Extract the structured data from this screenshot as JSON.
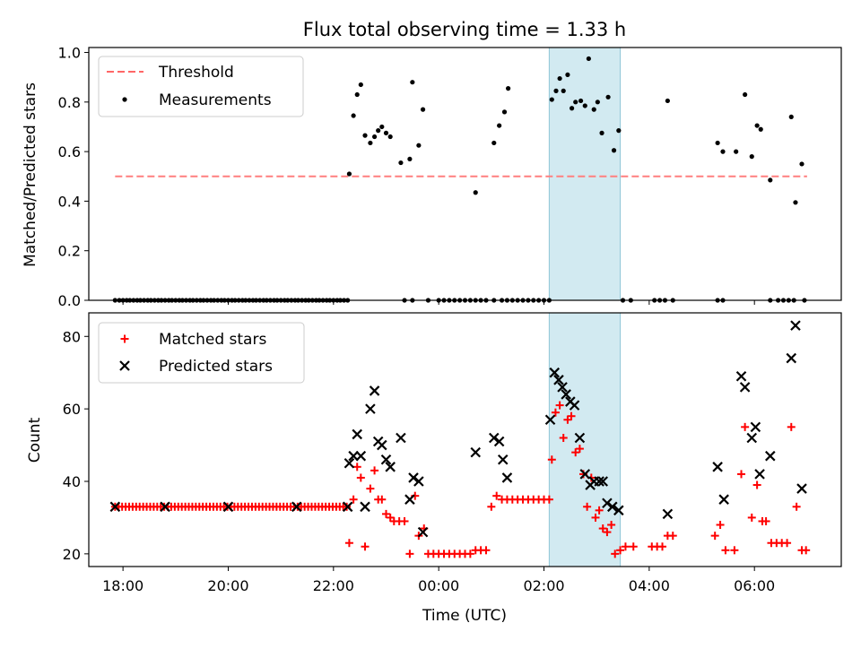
{
  "figure": {
    "title": "Flux total observing time = 1.33 h",
    "xlabel": "Time (UTC)"
  },
  "chart_data": [
    {
      "type": "scatter",
      "panel": "top",
      "ylabel": "Matched/Predicted stars",
      "xlim": [
        17.35,
        31.65
      ],
      "ylim": [
        0,
        1.02
      ],
      "yticks": [
        "0.0",
        "0.2",
        "0.4",
        "0.6",
        "0.8",
        "1.0"
      ],
      "highlight_span": [
        26.1,
        27.45
      ],
      "highlight_color": "#add8e6",
      "legend": [
        {
          "key": "threshold",
          "label": "Threshold",
          "style": "dashed",
          "color": "#ff6666"
        },
        {
          "key": "measurements",
          "label": "Measurements",
          "style": "dot",
          "color": "#000000"
        }
      ],
      "legend_position": "upper-left",
      "threshold": {
        "x": [
          17.85,
          31.0
        ],
        "y": 0.5,
        "color": "#ff7f7f"
      },
      "measurements_zero_x": [
        17.85,
        17.93,
        18.0,
        18.07,
        18.13,
        18.2,
        18.27,
        18.33,
        18.4,
        18.47,
        18.53,
        18.6,
        18.67,
        18.73,
        18.8,
        18.87,
        18.93,
        19.0,
        19.07,
        19.13,
        19.2,
        19.27,
        19.33,
        19.4,
        19.47,
        19.53,
        19.6,
        19.67,
        19.73,
        19.8,
        19.87,
        19.93,
        20.0,
        20.07,
        20.13,
        20.2,
        20.27,
        20.33,
        20.4,
        20.47,
        20.53,
        20.6,
        20.67,
        20.73,
        20.8,
        20.87,
        20.93,
        21.0,
        21.07,
        21.13,
        21.2,
        21.27,
        21.33,
        21.4,
        21.47,
        21.53,
        21.6,
        21.67,
        21.73,
        21.8,
        21.87,
        21.93,
        22.0,
        22.07,
        22.13,
        22.2,
        22.27,
        23.35,
        23.5,
        23.8,
        24.0,
        24.1,
        24.2,
        24.3,
        24.4,
        24.5,
        24.6,
        24.7,
        24.8,
        24.9,
        25.05,
        25.2,
        25.3,
        25.4,
        25.5,
        25.6,
        25.7,
        25.8,
        25.9,
        26.0,
        26.1,
        27.5,
        27.65,
        28.1,
        28.2,
        28.3,
        28.45,
        29.3,
        29.4,
        30.3,
        30.45,
        30.55,
        30.65,
        30.75,
        30.95
      ],
      "measurements": [
        {
          "x": 22.3,
          "y": 0.51
        },
        {
          "x": 22.38,
          "y": 0.745
        },
        {
          "x": 22.45,
          "y": 0.83
        },
        {
          "x": 22.52,
          "y": 0.87
        },
        {
          "x": 22.6,
          "y": 0.665
        },
        {
          "x": 22.7,
          "y": 0.635
        },
        {
          "x": 22.78,
          "y": 0.66
        },
        {
          "x": 22.85,
          "y": 0.685
        },
        {
          "x": 22.92,
          "y": 0.7
        },
        {
          "x": 23.0,
          "y": 0.675
        },
        {
          "x": 23.08,
          "y": 0.66
        },
        {
          "x": 23.28,
          "y": 0.555
        },
        {
          "x": 23.45,
          "y": 0.57
        },
        {
          "x": 23.5,
          "y": 0.88
        },
        {
          "x": 23.62,
          "y": 0.625
        },
        {
          "x": 23.7,
          "y": 0.77
        },
        {
          "x": 24.7,
          "y": 0.435
        },
        {
          "x": 25.05,
          "y": 0.635
        },
        {
          "x": 25.15,
          "y": 0.705
        },
        {
          "x": 25.25,
          "y": 0.76
        },
        {
          "x": 25.32,
          "y": 0.855
        },
        {
          "x": 26.15,
          "y": 0.81
        },
        {
          "x": 26.23,
          "y": 0.845
        },
        {
          "x": 26.3,
          "y": 0.895
        },
        {
          "x": 26.37,
          "y": 0.845
        },
        {
          "x": 26.45,
          "y": 0.91
        },
        {
          "x": 26.53,
          "y": 0.775
        },
        {
          "x": 26.6,
          "y": 0.8
        },
        {
          "x": 26.7,
          "y": 0.805
        },
        {
          "x": 26.78,
          "y": 0.785
        },
        {
          "x": 26.85,
          "y": 0.975
        },
        {
          "x": 26.95,
          "y": 0.77
        },
        {
          "x": 27.02,
          "y": 0.8
        },
        {
          "x": 27.1,
          "y": 0.675
        },
        {
          "x": 27.22,
          "y": 0.82
        },
        {
          "x": 27.33,
          "y": 0.605
        },
        {
          "x": 27.42,
          "y": 0.685
        },
        {
          "x": 28.35,
          "y": 0.805
        },
        {
          "x": 29.3,
          "y": 0.635
        },
        {
          "x": 29.4,
          "y": 0.6
        },
        {
          "x": 29.65,
          "y": 0.6
        },
        {
          "x": 29.82,
          "y": 0.83
        },
        {
          "x": 29.95,
          "y": 0.58
        },
        {
          "x": 30.05,
          "y": 0.705
        },
        {
          "x": 30.12,
          "y": 0.69
        },
        {
          "x": 30.3,
          "y": 0.485
        },
        {
          "x": 30.7,
          "y": 0.74
        },
        {
          "x": 30.78,
          "y": 0.395
        },
        {
          "x": 30.9,
          "y": 0.55
        }
      ]
    },
    {
      "type": "scatter",
      "panel": "bottom",
      "ylabel": "Count",
      "xlim": [
        17.35,
        31.65
      ],
      "ylim": [
        16.5,
        86.5
      ],
      "yticks": [
        "20",
        "40",
        "60",
        "80"
      ],
      "xticks": [
        "18:00",
        "20:00",
        "22:00",
        "00:00",
        "02:00",
        "04:00",
        "06:00"
      ],
      "xtick_values": [
        18,
        20,
        22,
        24,
        26,
        28,
        30
      ],
      "highlight_span": [
        26.1,
        27.45
      ],
      "legend": [
        {
          "key": "matched",
          "label": "Matched stars",
          "marker": "+",
          "color": "#ff0000"
        },
        {
          "key": "predicted",
          "label": "Predicted stars",
          "marker": "x",
          "color": "#000000"
        }
      ],
      "legend_position": "upper-left",
      "matched_baseline": {
        "y": 33,
        "x_from": 17.85,
        "x_to": 22.27,
        "step": 0.0667
      },
      "matched": [
        {
          "x": 22.3,
          "y": 23
        },
        {
          "x": 22.38,
          "y": 35
        },
        {
          "x": 22.45,
          "y": 44
        },
        {
          "x": 22.52,
          "y": 41
        },
        {
          "x": 22.6,
          "y": 22
        },
        {
          "x": 22.7,
          "y": 38
        },
        {
          "x": 22.78,
          "y": 43
        },
        {
          "x": 22.85,
          "y": 35
        },
        {
          "x": 22.92,
          "y": 35
        },
        {
          "x": 23.0,
          "y": 31
        },
        {
          "x": 23.08,
          "y": 30
        },
        {
          "x": 23.15,
          "y": 29
        },
        {
          "x": 23.25,
          "y": 29
        },
        {
          "x": 23.35,
          "y": 29
        },
        {
          "x": 23.45,
          "y": 20
        },
        {
          "x": 23.55,
          "y": 36
        },
        {
          "x": 23.62,
          "y": 25
        },
        {
          "x": 23.72,
          "y": 27
        },
        {
          "x": 23.8,
          "y": 20
        },
        {
          "x": 23.9,
          "y": 20
        },
        {
          "x": 24.0,
          "y": 20
        },
        {
          "x": 24.1,
          "y": 20
        },
        {
          "x": 24.2,
          "y": 20
        },
        {
          "x": 24.3,
          "y": 20
        },
        {
          "x": 24.4,
          "y": 20
        },
        {
          "x": 24.5,
          "y": 20
        },
        {
          "x": 24.6,
          "y": 20
        },
        {
          "x": 24.7,
          "y": 21
        },
        {
          "x": 24.8,
          "y": 21
        },
        {
          "x": 24.9,
          "y": 21
        },
        {
          "x": 25.0,
          "y": 33
        },
        {
          "x": 25.1,
          "y": 36
        },
        {
          "x": 25.2,
          "y": 35
        },
        {
          "x": 25.3,
          "y": 35
        },
        {
          "x": 25.4,
          "y": 35
        },
        {
          "x": 25.5,
          "y": 35
        },
        {
          "x": 25.6,
          "y": 35
        },
        {
          "x": 25.7,
          "y": 35
        },
        {
          "x": 25.8,
          "y": 35
        },
        {
          "x": 25.9,
          "y": 35
        },
        {
          "x": 26.0,
          "y": 35
        },
        {
          "x": 26.1,
          "y": 35
        },
        {
          "x": 26.15,
          "y": 46
        },
        {
          "x": 26.22,
          "y": 59
        },
        {
          "x": 26.3,
          "y": 61
        },
        {
          "x": 26.37,
          "y": 52
        },
        {
          "x": 26.45,
          "y": 57
        },
        {
          "x": 26.52,
          "y": 58
        },
        {
          "x": 26.6,
          "y": 48
        },
        {
          "x": 26.68,
          "y": 49
        },
        {
          "x": 26.75,
          "y": 42
        },
        {
          "x": 26.82,
          "y": 33
        },
        {
          "x": 26.9,
          "y": 41
        },
        {
          "x": 26.98,
          "y": 30
        },
        {
          "x": 27.05,
          "y": 32
        },
        {
          "x": 27.12,
          "y": 27
        },
        {
          "x": 27.2,
          "y": 26
        },
        {
          "x": 27.28,
          "y": 28
        },
        {
          "x": 27.35,
          "y": 20
        },
        {
          "x": 27.45,
          "y": 21
        },
        {
          "x": 27.55,
          "y": 22
        },
        {
          "x": 27.7,
          "y": 22
        },
        {
          "x": 28.05,
          "y": 22
        },
        {
          "x": 28.15,
          "y": 22
        },
        {
          "x": 28.25,
          "y": 22
        },
        {
          "x": 28.35,
          "y": 25
        },
        {
          "x": 28.45,
          "y": 25
        },
        {
          "x": 29.25,
          "y": 25
        },
        {
          "x": 29.35,
          "y": 28
        },
        {
          "x": 29.45,
          "y": 21
        },
        {
          "x": 29.62,
          "y": 21
        },
        {
          "x": 29.75,
          "y": 42
        },
        {
          "x": 29.82,
          "y": 55
        },
        {
          "x": 29.95,
          "y": 30
        },
        {
          "x": 30.05,
          "y": 39
        },
        {
          "x": 30.15,
          "y": 29
        },
        {
          "x": 30.22,
          "y": 29
        },
        {
          "x": 30.32,
          "y": 23
        },
        {
          "x": 30.42,
          "y": 23
        },
        {
          "x": 30.52,
          "y": 23
        },
        {
          "x": 30.62,
          "y": 23
        },
        {
          "x": 30.7,
          "y": 55
        },
        {
          "x": 30.8,
          "y": 33
        },
        {
          "x": 30.9,
          "y": 21
        },
        {
          "x": 30.98,
          "y": 21
        }
      ],
      "predicted_baseline": [
        {
          "x": 17.85,
          "y": 33
        },
        {
          "x": 18.8,
          "y": 33
        },
        {
          "x": 20.0,
          "y": 33
        },
        {
          "x": 21.3,
          "y": 33
        },
        {
          "x": 22.27,
          "y": 33
        }
      ],
      "predicted": [
        {
          "x": 22.3,
          "y": 45
        },
        {
          "x": 22.38,
          "y": 47
        },
        {
          "x": 22.45,
          "y": 53
        },
        {
          "x": 22.52,
          "y": 47
        },
        {
          "x": 22.6,
          "y": 33
        },
        {
          "x": 22.7,
          "y": 60
        },
        {
          "x": 22.78,
          "y": 65
        },
        {
          "x": 22.85,
          "y": 51
        },
        {
          "x": 22.92,
          "y": 50
        },
        {
          "x": 23.0,
          "y": 46
        },
        {
          "x": 23.08,
          "y": 44
        },
        {
          "x": 23.28,
          "y": 52
        },
        {
          "x": 23.45,
          "y": 35
        },
        {
          "x": 23.52,
          "y": 41
        },
        {
          "x": 23.62,
          "y": 40
        },
        {
          "x": 23.7,
          "y": 26
        },
        {
          "x": 24.7,
          "y": 48
        },
        {
          "x": 25.05,
          "y": 52
        },
        {
          "x": 25.15,
          "y": 51
        },
        {
          "x": 25.22,
          "y": 46
        },
        {
          "x": 25.3,
          "y": 41
        },
        {
          "x": 26.12,
          "y": 57
        },
        {
          "x": 26.2,
          "y": 70
        },
        {
          "x": 26.28,
          "y": 68
        },
        {
          "x": 26.35,
          "y": 66
        },
        {
          "x": 26.42,
          "y": 64
        },
        {
          "x": 26.5,
          "y": 62
        },
        {
          "x": 26.58,
          "y": 61
        },
        {
          "x": 26.68,
          "y": 52
        },
        {
          "x": 26.78,
          "y": 42
        },
        {
          "x": 26.88,
          "y": 39
        },
        {
          "x": 26.95,
          "y": 40
        },
        {
          "x": 27.05,
          "y": 40
        },
        {
          "x": 27.12,
          "y": 40
        },
        {
          "x": 27.2,
          "y": 34
        },
        {
          "x": 27.3,
          "y": 33
        },
        {
          "x": 27.42,
          "y": 32
        },
        {
          "x": 28.35,
          "y": 31
        },
        {
          "x": 29.3,
          "y": 44
        },
        {
          "x": 29.42,
          "y": 35
        },
        {
          "x": 29.75,
          "y": 69
        },
        {
          "x": 29.82,
          "y": 66
        },
        {
          "x": 29.95,
          "y": 52
        },
        {
          "x": 30.02,
          "y": 55
        },
        {
          "x": 30.1,
          "y": 42
        },
        {
          "x": 30.3,
          "y": 47
        },
        {
          "x": 30.7,
          "y": 74
        },
        {
          "x": 30.78,
          "y": 83
        },
        {
          "x": 30.9,
          "y": 38
        }
      ]
    }
  ]
}
